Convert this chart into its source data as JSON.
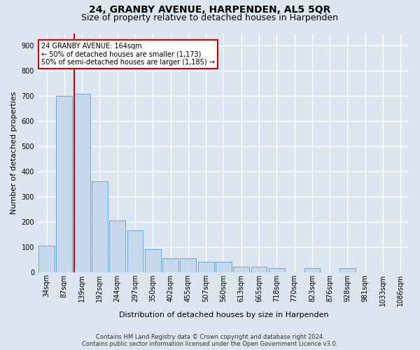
{
  "title": "24, GRANBY AVENUE, HARPENDEN, AL5 5QR",
  "subtitle": "Size of property relative to detached houses in Harpenden",
  "xlabel": "Distribution of detached houses by size in Harpenden",
  "ylabel": "Number of detached properties",
  "categories": [
    "34sqm",
    "87sqm",
    "139sqm",
    "192sqm",
    "244sqm",
    "297sqm",
    "350sqm",
    "402sqm",
    "455sqm",
    "507sqm",
    "560sqm",
    "613sqm",
    "665sqm",
    "718sqm",
    "770sqm",
    "823sqm",
    "876sqm",
    "928sqm",
    "981sqm",
    "1033sqm",
    "1086sqm"
  ],
  "values": [
    105,
    700,
    710,
    360,
    205,
    165,
    90,
    55,
    55,
    40,
    40,
    20,
    20,
    15,
    0,
    15,
    0,
    15,
    0,
    0,
    0
  ],
  "bar_color": "#c5d8ee",
  "bar_edge_color": "#6fa8d0",
  "vline_color": "#cc0000",
  "vline_index": 2,
  "annotation_line1": "24 GRANBY AVENUE: 164sqm",
  "annotation_line2": "← 50% of detached houses are smaller (1,173)",
  "annotation_line3": "50% of semi-detached houses are larger (1,185) →",
  "annotation_box_edgecolor": "#cc0000",
  "bg_color": "#dce6f1",
  "ylim": [
    0,
    950
  ],
  "yticks": [
    0,
    100,
    200,
    300,
    400,
    500,
    600,
    700,
    800,
    900
  ],
  "footer_line1": "Contains HM Land Registry data © Crown copyright and database right 2024.",
  "footer_line2": "Contains public sector information licensed under the Open Government Licence v3.0.",
  "title_fontsize": 10,
  "subtitle_fontsize": 9,
  "ylabel_fontsize": 8,
  "xlabel_fontsize": 8,
  "tick_fontsize": 7,
  "footer_fontsize": 6,
  "annot_fontsize": 7
}
